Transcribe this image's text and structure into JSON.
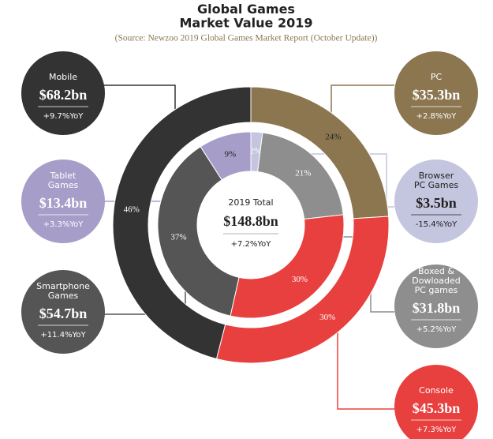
{
  "title": "Global Games\nMarket Value 2019",
  "subtitle": "(Source: Newzoo 2019 Global Games Market Report (October Update))",
  "center": {
    "label": "2019 Total",
    "value_label": "$148.8bn",
    "growth_label": "+7.2%YoY"
  },
  "chart_data": [
    {
      "type": "donut",
      "categories": [
        "PC",
        "Console",
        "Mobile"
      ],
      "values": [
        24,
        30,
        46
      ],
      "value_labels": [
        "24%",
        "30%",
        "46%"
      ],
      "colors": [
        "#8b7650",
        "#e8403f",
        "#333333"
      ],
      "amount_labels": [
        "$35.3bn",
        "$45.3bn",
        "$68.2bn"
      ],
      "growth_labels": [
        "+2.8%YoY",
        "+7.3%YoY",
        "+9.7%YoY"
      ]
    },
    {
      "type": "donut",
      "categories": [
        "Browser\nPC Games",
        "Boxed &\nDowloaded\nPC games",
        null,
        "Smartphone\nGames",
        "Tablet\nGames"
      ],
      "values": [
        2,
        21,
        30,
        37,
        9
      ],
      "value_labels": [
        "2%",
        "21%",
        "30%",
        "37%",
        "9%"
      ],
      "colors": [
        "#c4c5df",
        "#8e8e8e",
        "#e8403f",
        "#555555",
        "#a79dc9"
      ],
      "amount_labels": [
        "$3.5bn",
        "$31.8bn",
        null,
        "$54.7bn",
        "$13.4bn"
      ],
      "growth_labels": [
        "-15.4%YoY",
        "+5.2%YoY",
        null,
        "+11.4%YoY",
        "+3.3%YoY"
      ]
    }
  ]
}
